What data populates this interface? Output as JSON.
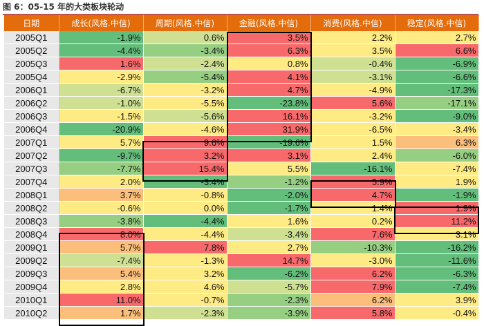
{
  "caption": "图 6：05-15 年的大类板块轮动",
  "columns": [
    "日期",
    "成长(风格.中信)",
    "周期(风格.中信)",
    "金融(风格.中信)",
    "消费(风格.中信)",
    "稳定(风格.中信)"
  ],
  "rows": [
    {
      "date": "2005Q1",
      "values": [
        "-1.9%",
        "0.6%",
        "3.5%",
        "2.2%",
        "2.7%"
      ],
      "colors": [
        "#63be7b",
        "#cfe093",
        "#f8696b",
        "#ffeb84",
        "#ffeb84"
      ]
    },
    {
      "date": "2005Q2",
      "values": [
        "-4.4%",
        "-3.4%",
        "6.3%",
        "3.5%",
        "6.6%"
      ],
      "colors": [
        "#63be7b",
        "#97cf82",
        "#f8696b",
        "#ffeb84",
        "#f8696b"
      ]
    },
    {
      "date": "2005Q3",
      "values": [
        "1.6%",
        "-2.4%",
        "0.8%",
        "-0.4%",
        "-6.9%"
      ],
      "colors": [
        "#f8696b",
        "#cfe093",
        "#ffeb84",
        "#cfe093",
        "#63be7b"
      ]
    },
    {
      "date": "2005Q4",
      "values": [
        "-2.9%",
        "-5.4%",
        "4.1%",
        "-3.1%",
        "-6.6%"
      ],
      "colors": [
        "#ffeb84",
        "#97cf82",
        "#f8696b",
        "#cfe093",
        "#63be7b"
      ]
    },
    {
      "date": "2006Q1",
      "values": [
        "-6.7%",
        "-3.2%",
        "4.7%",
        "-4.9%",
        "-17.3%"
      ],
      "colors": [
        "#cfe093",
        "#ffeb84",
        "#f8696b",
        "#ffeb84",
        "#63be7b"
      ]
    },
    {
      "date": "2006Q2",
      "values": [
        "-1.0%",
        "-5.5%",
        "-23.8%",
        "5.6%",
        "-17.1%"
      ],
      "colors": [
        "#cfe093",
        "#ffeb84",
        "#63be7b",
        "#f8696b",
        "#97cf82"
      ]
    },
    {
      "date": "2006Q3",
      "values": [
        "-1.5%",
        "-5.6%",
        "16.1%",
        "-3.2%",
        "-9.0%"
      ],
      "colors": [
        "#ffeb84",
        "#cfe093",
        "#f8696b",
        "#ffeb84",
        "#63be7b"
      ]
    },
    {
      "date": "2006Q4",
      "values": [
        "-20.9%",
        "-4.6%",
        "31.9%",
        "-6.5%",
        "-3.4%"
      ],
      "colors": [
        "#63be7b",
        "#ffeb84",
        "#f8696b",
        "#ffeb84",
        "#ffeb84"
      ]
    },
    {
      "date": "2007Q1",
      "values": [
        "5.7%",
        "9.6%",
        "-19.6%",
        "1.5%",
        "6.3%"
      ],
      "colors": [
        "#ffeb84",
        "#f8696b",
        "#63be7b",
        "#ffeb84",
        "#fcbf7b"
      ]
    },
    {
      "date": "2007Q2",
      "values": [
        "-9.7%",
        "3.2%",
        "3.1%",
        "2.4%",
        "-6.0%"
      ],
      "colors": [
        "#63be7b",
        "#f8696b",
        "#f8696b",
        "#ffeb84",
        "#97cf82"
      ]
    },
    {
      "date": "2007Q3",
      "values": [
        "-7.7%",
        "15.4%",
        "5.5%",
        "-16.1%",
        "-7.4%"
      ],
      "colors": [
        "#97cf82",
        "#f8696b",
        "#ffeb84",
        "#63be7b",
        "#ffeb84"
      ]
    },
    {
      "date": "2007Q4",
      "values": [
        "2.0%",
        "-3.4%",
        "-1.2%",
        "5.9%",
        "1.9%"
      ],
      "colors": [
        "#ffeb84",
        "#63be7b",
        "#97cf82",
        "#f8696b",
        "#ffeb84"
      ]
    },
    {
      "date": "2008Q1",
      "values": [
        "3.7%",
        "-0.8%",
        "-2.0%",
        "4.7%",
        "-1.9%"
      ],
      "colors": [
        "#fcbf7b",
        "#ffeb84",
        "#63be7b",
        "#f8696b",
        "#63be7b"
      ]
    },
    {
      "date": "2008Q2",
      "values": [
        "-0.6%",
        "0.0%",
        "-1.7%",
        "1.4%",
        "1.9%"
      ],
      "colors": [
        "#ffeb84",
        "#ffeb84",
        "#63be7b",
        "#ffeb84",
        "#f8696b"
      ]
    },
    {
      "date": "2008Q3",
      "values": [
        "-3.8%",
        "-4.4%",
        "1.6%",
        "0.2%",
        "11.2%"
      ],
      "colors": [
        "#97cf82",
        "#63be7b",
        "#ffeb84",
        "#ffeb84",
        "#f8696b"
      ]
    },
    {
      "date": "2008Q4",
      "values": [
        "8.0%",
        "-4.4%",
        "-3.4%",
        "7.6%",
        "3.1%"
      ],
      "colors": [
        "#f8696b",
        "#ffeb84",
        "#cfe093",
        "#f8696b",
        "#ffeb84"
      ]
    },
    {
      "date": "2009Q1",
      "values": [
        "5.7%",
        "7.8%",
        "2.7%",
        "-10.3%",
        "-16.2%"
      ],
      "colors": [
        "#fcbf7b",
        "#f8696b",
        "#ffeb84",
        "#97cf82",
        "#63be7b"
      ]
    },
    {
      "date": "2009Q2",
      "values": [
        "-7.4%",
        "-1.3%",
        "14.7%",
        "-3.0%",
        "-11.6%"
      ],
      "colors": [
        "#cfe093",
        "#ffeb84",
        "#f8696b",
        "#ffeb84",
        "#63be7b"
      ]
    },
    {
      "date": "2009Q3",
      "values": [
        "5.4%",
        "3.2%",
        "-6.2%",
        "6.2%",
        "-6.3%"
      ],
      "colors": [
        "#fcbf7b",
        "#ffeb84",
        "#63be7b",
        "#f8696b",
        "#63be7b"
      ]
    },
    {
      "date": "2009Q4",
      "values": [
        "2.8%",
        "4.6%",
        "-5.7%",
        "7.9%",
        "-7.4%"
      ],
      "colors": [
        "#ffeb84",
        "#ffeb84",
        "#cfe093",
        "#f8696b",
        "#63be7b"
      ]
    },
    {
      "date": "2010Q1",
      "values": [
        "11.0%",
        "-0.7%",
        "-2.3%",
        "6.2%",
        "3.9%"
      ],
      "colors": [
        "#f8696b",
        "#ffeb84",
        "#97cf82",
        "#fcbf7b",
        "#ffeb84"
      ]
    },
    {
      "date": "2010Q2",
      "values": [
        "1.7%",
        "-2.3%",
        "-3.9%",
        "5.8%",
        "-0.4%"
      ],
      "colors": [
        "#fcbf7b",
        "#cfe093",
        "#97cf82",
        "#f8696b",
        "#ffeb84"
      ]
    }
  ]
}
